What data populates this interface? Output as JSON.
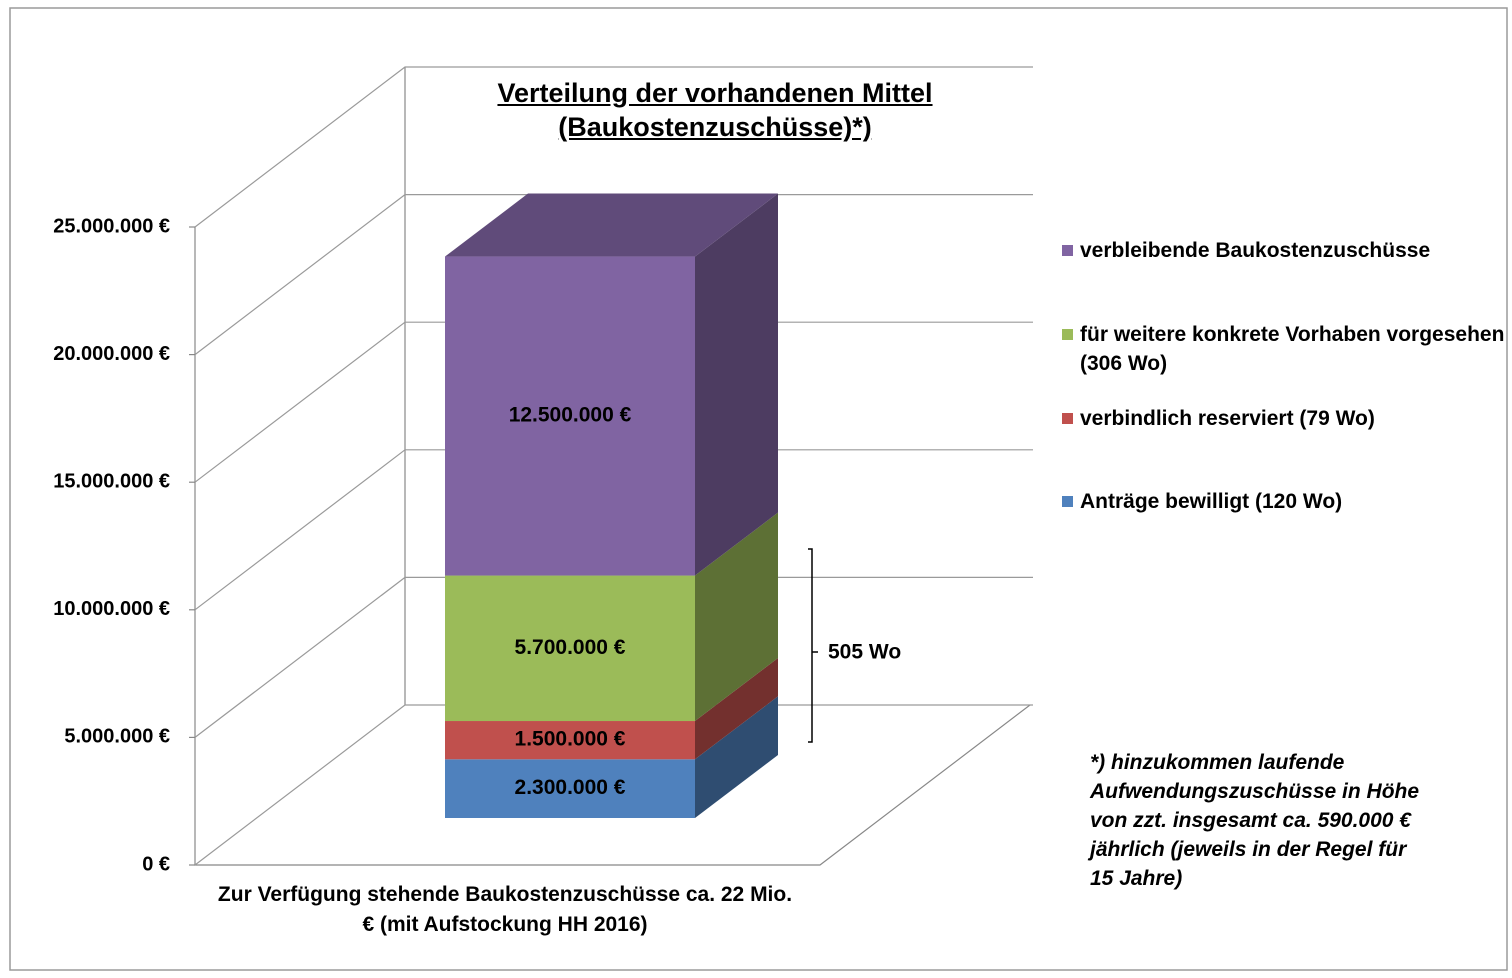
{
  "chart_data": {
    "type": "bar3d_stacked",
    "title": "Verteilung der vorhandenen Mittel (Baukostenzuschüsse)*)",
    "categories": [
      "Zur Verfügung stehende Baukostenzuschüsse ca. 22 Mio. € (mit Aufstockung HH 2016)"
    ],
    "series": [
      {
        "name": "Anträge bewilligt (120 Wo)",
        "color": "#4f81bd",
        "values": [
          2300000
        ],
        "value_labels": [
          "2.300.000 €"
        ]
      },
      {
        "name": "verbindlich reserviert (79 Wo)",
        "color": "#c0504d",
        "values": [
          1500000
        ],
        "value_labels": [
          "1.500.000 €"
        ]
      },
      {
        "name": "für weitere konkrete Vorhaben vorgesehen (306 Wo)",
        "color": "#9bbb59",
        "values": [
          5700000
        ],
        "value_labels": [
          "5.700.000 €"
        ]
      },
      {
        "name": "verbleibende Baukostenzuschüsse",
        "color": "#8064a2",
        "values": [
          12500000
        ],
        "value_labels": [
          "12.500.000 €"
        ]
      }
    ],
    "ylim": [
      0,
      25000000
    ],
    "yticks": [
      {
        "value": 0,
        "label": "0 €"
      },
      {
        "value": 5000000,
        "label": "5.000.000 €"
      },
      {
        "value": 10000000,
        "label": "10.000.000 €"
      },
      {
        "value": 15000000,
        "label": "15.000.000 €"
      },
      {
        "value": 20000000,
        "label": "20.000.000 €"
      },
      {
        "value": 25000000,
        "label": "25.000.000 €"
      }
    ],
    "grid": true,
    "legend": "right",
    "annotations": [
      "505 Wo",
      "*) hinzukommen laufende Aufwendungszuschüsse in Höhe von zzt. insgesamt ca. 590.000 € jährlich (jeweils in der Regel für 15 Jahre)"
    ]
  }
}
